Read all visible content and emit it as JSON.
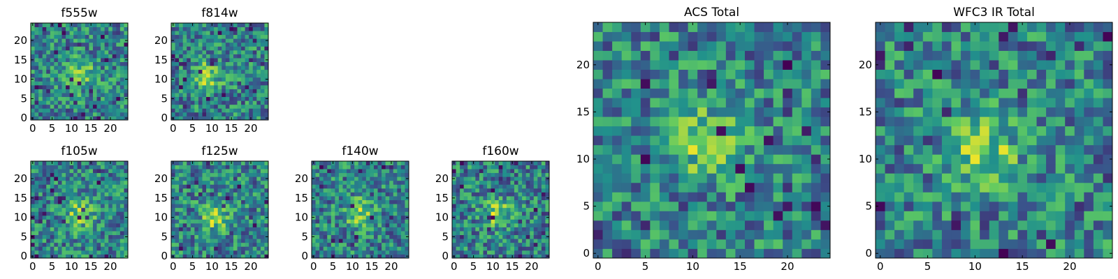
{
  "figure": {
    "colormap": [
      "#440154",
      "#3b528b",
      "#21918c",
      "#5ec962",
      "#fde725"
    ]
  },
  "chart_data": [
    {
      "type": "heatmap",
      "title": "f555w",
      "grid_size": 25,
      "xticks": [
        "0",
        "5",
        "10",
        "15",
        "20"
      ],
      "yticks": [
        "0",
        "5",
        "10",
        "15",
        "20"
      ],
      "bright_center": [
        12,
        11
      ],
      "seed": 11
    },
    {
      "type": "heatmap",
      "title": "f814w",
      "grid_size": 25,
      "xticks": [
        "0",
        "5",
        "10",
        "15",
        "20"
      ],
      "yticks": [
        "0",
        "5",
        "10",
        "15",
        "20"
      ],
      "bright_center": [
        9,
        11
      ],
      "seed": 23
    },
    {
      "type": "heatmap",
      "title": "f105w",
      "grid_size": 25,
      "xticks": [
        "0",
        "5",
        "10",
        "15",
        "20"
      ],
      "yticks": [
        "0",
        "5",
        "10",
        "15",
        "20"
      ],
      "bright_center": [
        12,
        11
      ],
      "seed": 37
    },
    {
      "type": "heatmap",
      "title": "f125w",
      "grid_size": 25,
      "xticks": [
        "0",
        "5",
        "10",
        "15",
        "20"
      ],
      "yticks": [
        "0",
        "5",
        "10",
        "15",
        "20"
      ],
      "bright_center": [
        11,
        10
      ],
      "seed": 41
    },
    {
      "type": "heatmap",
      "title": "f140w",
      "grid_size": 25,
      "xticks": [
        "0",
        "5",
        "10",
        "15",
        "20"
      ],
      "yticks": [
        "0",
        "5",
        "10",
        "15",
        "20"
      ],
      "bright_center": [
        12,
        11
      ],
      "seed": 53
    },
    {
      "type": "heatmap",
      "title": "f160w",
      "grid_size": 25,
      "xticks": [
        "0",
        "5",
        "10",
        "15",
        "20"
      ],
      "yticks": [
        "0",
        "5",
        "10",
        "15",
        "20"
      ],
      "bright_center": [
        11,
        11
      ],
      "seed": 67
    },
    {
      "type": "heatmap",
      "title": "ACS Total",
      "grid_size": 25,
      "xticks": [
        "0",
        "5",
        "10",
        "15",
        "20"
      ],
      "yticks": [
        "0",
        "5",
        "10",
        "15",
        "20"
      ],
      "bright_center": [
        11,
        12
      ],
      "seed": 79
    },
    {
      "type": "heatmap",
      "title": "WFC3 IR Total",
      "grid_size": 25,
      "xticks": [
        "0",
        "5",
        "10",
        "15",
        "20"
      ],
      "yticks": [
        "0",
        "5",
        "10",
        "15",
        "20"
      ],
      "bright_center": [
        11,
        11
      ],
      "seed": 97
    }
  ]
}
